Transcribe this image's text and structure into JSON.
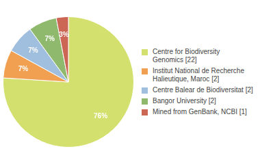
{
  "chart_data": {
    "type": "pie",
    "categories": [
      "Centre for Biodiversity\nGenomics [22]",
      "Institut National de Recherche\nHalieutique, Maroc [2]",
      "Centre Balear de Biodiversitat [2]",
      "Bangor University [2]",
      "Mined from GenBank, NCBI [1]"
    ],
    "values": [
      76,
      7,
      7,
      7,
      3
    ],
    "value_labels": [
      "76%",
      "7%",
      "7%",
      "7%",
      "3%"
    ],
    "data_labels": true,
    "colors": [
      "#d4e06e",
      "#f0a050",
      "#a0bedd",
      "#8fba6e",
      "#cc6655"
    ],
    "legend": "right"
  }
}
